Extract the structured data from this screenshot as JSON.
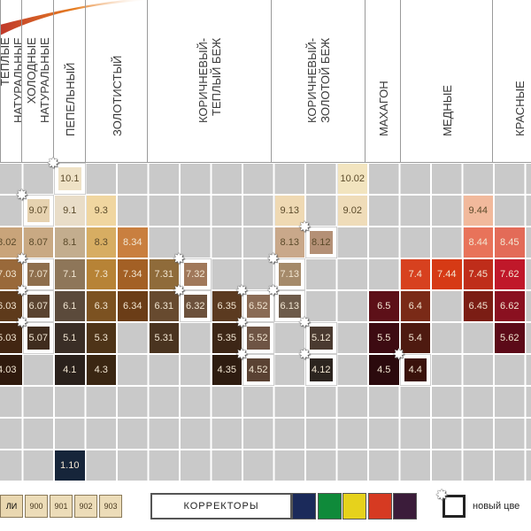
{
  "columns": [
    {
      "key": "nat",
      "label": "ТЕПЛЫЕ\nНАТУРАЛЬНЫЕ"
    },
    {
      "key": "cold",
      "label": "ХОЛОДНЫЕ\nНАТУРАЛЬНЫЕ"
    },
    {
      "key": "ash",
      "label": "ПЕПЕЛЬНЫЙ"
    },
    {
      "key": "gold",
      "label": "ЗОЛОТИСТЫЙ"
    },
    {
      "key": "beige",
      "label": "КОРИЧНЕВЫЙ-\nТЕПЛЫЙ БЕЖ"
    },
    {
      "key": "gbeige",
      "label": "КОРИЧНЕВЫЙ-\nЗОЛОТОЙ БЕЖ"
    },
    {
      "key": "mah",
      "label": "МАХАГОН"
    },
    {
      "key": "copper",
      "label": "МЕДНЫЕ"
    },
    {
      "key": "red",
      "label": "КРАСНЫЕ"
    }
  ],
  "cells": [
    {
      "text": "10.1",
      "col": 2,
      "row": 0,
      "color": "#efe2c6",
      "isNew": true,
      "star": true
    },
    {
      "text": "10.02",
      "col": 11,
      "row": 0,
      "color": "#f2e4bf",
      "isNew": false,
      "star": false
    },
    {
      "text": "9.07",
      "col": 1,
      "row": 1,
      "color": "#e6d2b0",
      "isNew": true,
      "star": true
    },
    {
      "text": "9.1",
      "col": 2,
      "row": 1,
      "color": "#e9ddc8",
      "isNew": false,
      "star": false
    },
    {
      "text": "9.3",
      "col": 3,
      "row": 1,
      "color": "#f0d6a0",
      "isNew": false,
      "star": false
    },
    {
      "text": "9.13",
      "col": 9,
      "row": 1,
      "color": "#efd9b3",
      "isNew": false,
      "star": false
    },
    {
      "text": "9.02",
      "col": 11,
      "row": 1,
      "color": "#efdcb9",
      "isNew": false,
      "star": false
    },
    {
      "text": "9.44",
      "col": 15,
      "row": 1,
      "color": "#f1b99c",
      "isNew": false,
      "star": false
    },
    {
      "text": "8.02",
      "col": 0,
      "row": 2,
      "color": "#c9a47a",
      "isNew": false,
      "star": false
    },
    {
      "text": "8.07",
      "col": 1,
      "row": 2,
      "color": "#c9a983",
      "isNew": false,
      "star": false
    },
    {
      "text": "8.1",
      "col": 2,
      "row": 2,
      "color": "#c3ad8e",
      "isNew": false,
      "star": false
    },
    {
      "text": "8.3",
      "col": 3,
      "row": 2,
      "color": "#d7ad62",
      "isNew": false,
      "star": false
    },
    {
      "text": "8.34",
      "col": 4,
      "row": 2,
      "color": "#c97f3f",
      "isNew": false,
      "star": false
    },
    {
      "text": "8.13",
      "col": 9,
      "row": 2,
      "color": "#c9a88a",
      "isNew": false,
      "star": false
    },
    {
      "text": "8.12",
      "col": 10,
      "row": 2,
      "color": "#b49076",
      "isNew": true,
      "star": true
    },
    {
      "text": "8.44",
      "col": 15,
      "row": 2,
      "color": "#e8735a",
      "isNew": false,
      "star": false
    },
    {
      "text": "8.45",
      "col": 16,
      "row": 2,
      "color": "#e36b58",
      "isNew": false,
      "star": false
    },
    {
      "text": "7.03",
      "col": 0,
      "row": 3,
      "color": "#99693a",
      "isNew": false,
      "star": false
    },
    {
      "text": "7.07",
      "col": 1,
      "row": 3,
      "color": "#8e6e4c",
      "isNew": true,
      "star": true
    },
    {
      "text": "7.1",
      "col": 2,
      "row": 3,
      "color": "#8e7659",
      "isNew": false,
      "star": false
    },
    {
      "text": "7.3",
      "col": 3,
      "row": 3,
      "color": "#b78336",
      "isNew": false,
      "star": false
    },
    {
      "text": "7.34",
      "col": 4,
      "row": 3,
      "color": "#a36025",
      "isNew": false,
      "star": false
    },
    {
      "text": "7.31",
      "col": 5,
      "row": 3,
      "color": "#8f6b3a",
      "isNew": false,
      "star": false
    },
    {
      "text": "7.32",
      "col": 6,
      "row": 3,
      "color": "#a0785a",
      "isNew": true,
      "star": true
    },
    {
      "text": "7.13",
      "col": 9,
      "row": 3,
      "color": "#a58a6a",
      "isNew": true,
      "star": true
    },
    {
      "text": "7.4",
      "col": 13,
      "row": 3,
      "color": "#d7411f",
      "isNew": false,
      "star": false
    },
    {
      "text": "7.44",
      "col": 14,
      "row": 3,
      "color": "#d63a15",
      "isNew": false,
      "star": false
    },
    {
      "text": "7.45",
      "col": 15,
      "row": 3,
      "color": "#bf2d1a",
      "isNew": false,
      "star": false
    },
    {
      "text": "7.62",
      "col": 16,
      "row": 3,
      "color": "#c0182a",
      "isNew": false,
      "star": false
    },
    {
      "text": "6.03",
      "col": 0,
      "row": 4,
      "color": "#5e3a1b",
      "isNew": false,
      "star": false
    },
    {
      "text": "6.07",
      "col": 1,
      "row": 4,
      "color": "#5a4330",
      "isNew": true,
      "star": true
    },
    {
      "text": "6.1",
      "col": 2,
      "row": 4,
      "color": "#5b4a3b",
      "isNew": false,
      "star": false
    },
    {
      "text": "6.3",
      "col": 3,
      "row": 4,
      "color": "#7c5221",
      "isNew": false,
      "star": false
    },
    {
      "text": "6.34",
      "col": 4,
      "row": 4,
      "color": "#6b3d17",
      "isNew": false,
      "star": false
    },
    {
      "text": "6.31",
      "col": 5,
      "row": 4,
      "color": "#674a2f",
      "isNew": false,
      "star": false
    },
    {
      "text": "6.32",
      "col": 6,
      "row": 4,
      "color": "#6c513c",
      "isNew": true,
      "star": true
    },
    {
      "text": "6.35",
      "col": 7,
      "row": 4,
      "color": "#5b3a20",
      "isNew": false,
      "star": false
    },
    {
      "text": "6.52",
      "col": 8,
      "row": 4,
      "color": "#8a6b55",
      "isNew": true,
      "star": true
    },
    {
      "text": "6.13",
      "col": 9,
      "row": 4,
      "color": "#6d5b4a",
      "isNew": true,
      "star": true
    },
    {
      "text": "6.5",
      "col": 12,
      "row": 4,
      "color": "#5d1018",
      "isNew": false,
      "star": false
    },
    {
      "text": "6.4",
      "col": 13,
      "row": 4,
      "color": "#7a2a17",
      "isNew": false,
      "star": false
    },
    {
      "text": "6.45",
      "col": 15,
      "row": 4,
      "color": "#7b1d14",
      "isNew": false,
      "star": false
    },
    {
      "text": "6.62",
      "col": 16,
      "row": 4,
      "color": "#8a1020",
      "isNew": false,
      "star": false
    },
    {
      "text": "5.03",
      "col": 0,
      "row": 5,
      "color": "#422612",
      "isNew": false,
      "star": false
    },
    {
      "text": "5.07",
      "col": 1,
      "row": 5,
      "color": "#3f2c1e",
      "isNew": true,
      "star": true
    },
    {
      "text": "5.1",
      "col": 2,
      "row": 5,
      "color": "#3a2e26",
      "isNew": false,
      "star": false
    },
    {
      "text": "5.3",
      "col": 3,
      "row": 5,
      "color": "#4e3418",
      "isNew": false,
      "star": false
    },
    {
      "text": "5.31",
      "col": 5,
      "row": 5,
      "color": "#4a3420",
      "isNew": false,
      "star": false
    },
    {
      "text": "5.35",
      "col": 7,
      "row": 5,
      "color": "#3d2616",
      "isNew": false,
      "star": false
    },
    {
      "text": "5.52",
      "col": 8,
      "row": 5,
      "color": "#6e5444",
      "isNew": true,
      "star": true
    },
    {
      "text": "5.12",
      "col": 10,
      "row": 5,
      "color": "#4a3a30",
      "isNew": true,
      "star": true
    },
    {
      "text": "5.5",
      "col": 12,
      "row": 5,
      "color": "#3d0b12",
      "isNew": false,
      "star": false
    },
    {
      "text": "5.4",
      "col": 13,
      "row": 5,
      "color": "#4e1a10",
      "isNew": false,
      "star": false
    },
    {
      "text": "5.62",
      "col": 16,
      "row": 5,
      "color": "#5c0a18",
      "isNew": false,
      "star": false
    },
    {
      "text": "4.03",
      "col": 0,
      "row": 6,
      "color": "#2f1a0d",
      "isNew": false,
      "star": false
    },
    {
      "text": "4.1",
      "col": 2,
      "row": 6,
      "color": "#2a211c",
      "isNew": false,
      "star": false
    },
    {
      "text": "4.3",
      "col": 3,
      "row": 6,
      "color": "#3a2612",
      "isNew": false,
      "star": false
    },
    {
      "text": "4.35",
      "col": 7,
      "row": 6,
      "color": "#2e1c10",
      "isNew": false,
      "star": false
    },
    {
      "text": "4.52",
      "col": 8,
      "row": 6,
      "color": "#5a4233",
      "isNew": true,
      "star": true
    },
    {
      "text": "4.12",
      "col": 10,
      "row": 6,
      "color": "#2c241f",
      "isNew": true,
      "star": true
    },
    {
      "text": "4.5",
      "col": 12,
      "row": 6,
      "color": "#2b0a0d",
      "isNew": false,
      "star": false
    },
    {
      "text": "4.4",
      "col": 13,
      "row": 6,
      "color": "#3a120b",
      "isNew": true,
      "star": true
    },
    {
      "text": "1.10",
      "col": 2,
      "row": 9,
      "color": "#16253a",
      "isNew": false,
      "star": false
    }
  ],
  "legend": {
    "left_partial": "ЛИ",
    "special_blondes": [
      "900",
      "901",
      "902",
      "903"
    ],
    "correctors_label": "КОРРЕКТОРЫ",
    "corrector_colors": [
      "#1b2a5a",
      "#0f8a3a",
      "#e6d21c",
      "#d63a22",
      "#3b1c3a"
    ],
    "new_color_label": "новый цве"
  }
}
